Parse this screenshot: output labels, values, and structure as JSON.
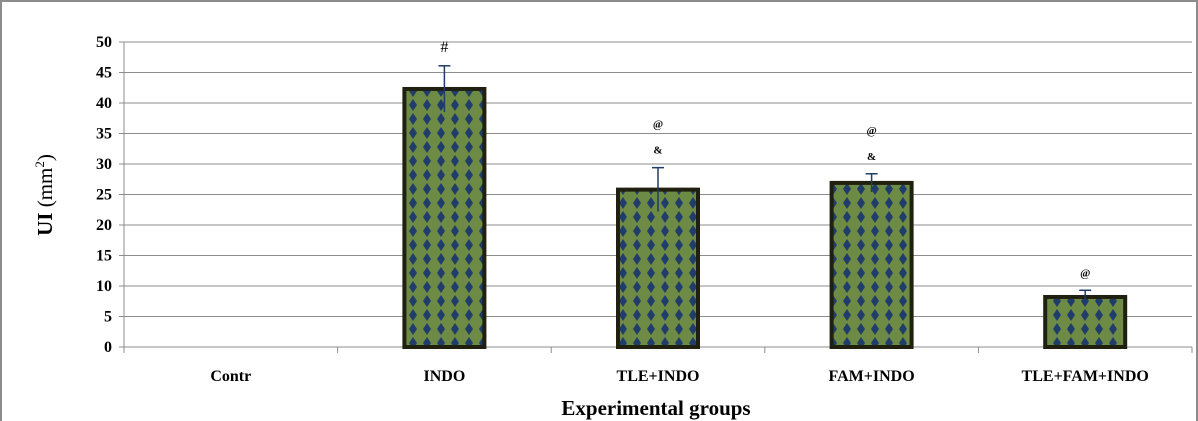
{
  "chart_data": {
    "type": "bar",
    "categories": [
      "Contr",
      "INDO",
      "TLE+INDO",
      "FAM+INDO",
      "TLE+FAM+INDO"
    ],
    "values": [
      0,
      42.3,
      25.8,
      26.9,
      8.2
    ],
    "errors": [
      0,
      3.8,
      3.6,
      1.5,
      1.1
    ],
    "annotations": [
      [],
      [
        "#"
      ],
      [
        "@",
        "&"
      ],
      [
        "@",
        "&"
      ],
      [
        "@"
      ]
    ],
    "xlabel": "Experimental groups",
    "ylabel_main": "UI",
    "ylabel_unit": "(mm",
    "ylabel_sup": "2",
    "ylabel_close": ")",
    "ylim": [
      0,
      50
    ],
    "yticks": [
      0,
      5,
      10,
      15,
      20,
      25,
      30,
      35,
      40,
      45,
      50
    ],
    "grid": true,
    "legend": "none",
    "colors": {
      "bar_fill": "#6d8b45",
      "bar_pattern": "#1f3c6a",
      "bar_border": "#202010",
      "error_bar": "#1f3c6a",
      "grid": "#8c8c8c"
    }
  }
}
